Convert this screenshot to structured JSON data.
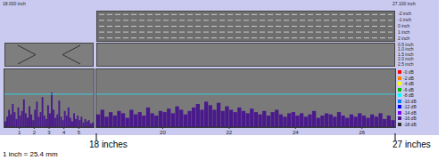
{
  "header": {
    "left": "18.000 inch",
    "right": "27.100 inch"
  },
  "scan_strip": {
    "labels": [
      "-2 inch",
      "-1 inch",
      "0 inch",
      "1 inch",
      "2 inch"
    ]
  },
  "gate_strip": {
    "labels": [
      "0.5 inch",
      "1.0 inch",
      "1.5 inch",
      "2.0 inch",
      "2.5 inch"
    ]
  },
  "color_scale": {
    "labels": [
      "-0 dB",
      "-2 dB",
      "-4 dB",
      "-6 dB",
      "-8 dB",
      "-10 dB",
      "-12 dB",
      "-14 dB",
      "-16 dB",
      "-18 dB"
    ],
    "colors": [
      "#ff0000",
      "#ff8000",
      "#ffff00",
      "#00c000",
      "#00ffff",
      "#0080ff",
      "#0000ff",
      "#8000ff",
      "#4a1a8c",
      "#303030"
    ]
  },
  "chart_data": [
    {
      "type": "bar",
      "x": [
        0.0625,
        0.1875,
        0.3125,
        0.4375,
        0.5625,
        0.6875,
        0.8125,
        0.9375,
        1.0625,
        1.1875,
        1.3125,
        1.4375,
        1.5625,
        1.6875,
        1.8125,
        1.9375,
        2.0625,
        2.1875,
        2.3125,
        2.4375,
        2.5625,
        2.6875,
        2.8125,
        2.9375,
        3.0625,
        3.1875,
        3.3125,
        3.4375,
        3.5625,
        3.6875,
        3.8125,
        3.9375,
        4.0625,
        4.1875,
        4.3125,
        4.4375,
        4.5625,
        4.6875,
        4.8125,
        4.9375,
        5.0625,
        5.1875,
        5.3125,
        5.4375,
        5.5625,
        5.6875,
        5.8125,
        5.9375
      ],
      "values": [
        10,
        18,
        30,
        22,
        40,
        26,
        14,
        34,
        20,
        28,
        48,
        24,
        16,
        36,
        22,
        12,
        30,
        44,
        18,
        26,
        52,
        20,
        14,
        38,
        24,
        60,
        30,
        16,
        22,
        46,
        18,
        12,
        28,
        20,
        34,
        16,
        10,
        24,
        14,
        20,
        12,
        18,
        8,
        14,
        10,
        12,
        6,
        8
      ],
      "color": "#4a1a8c",
      "xlim": [
        0,
        6
      ],
      "xticks": [
        1,
        2,
        3,
        4,
        5
      ],
      "ylim": [
        0,
        100
      ],
      "threshold": 57,
      "tick_labels": "x"
    },
    {
      "type": "bar",
      "x": [
        18.0625,
        18.1875,
        18.3125,
        18.4375,
        18.5625,
        18.6875,
        18.8125,
        18.9375,
        19.0625,
        19.1875,
        19.3125,
        19.4375,
        19.5625,
        19.6875,
        19.8125,
        19.9375,
        20.0625,
        20.1875,
        20.3125,
        20.4375,
        20.5625,
        20.6875,
        20.8125,
        20.9375,
        21.0625,
        21.1875,
        21.3125,
        21.4375,
        21.5625,
        21.6875,
        21.8125,
        21.9375,
        22.0625,
        22.1875,
        22.3125,
        22.4375,
        22.5625,
        22.6875,
        22.8125,
        22.9375,
        23.0625,
        23.1875,
        23.3125,
        23.4375,
        23.5625,
        23.6875,
        23.8125,
        23.9375,
        24.0625,
        24.1875,
        24.3125,
        24.4375,
        24.5625,
        24.6875,
        24.8125,
        24.9375,
        25.0625,
        25.1875,
        25.3125,
        25.4375,
        25.5625,
        25.6875,
        25.8125,
        25.9375,
        26.0625,
        26.1875,
        26.3125,
        26.4375,
        26.5625,
        26.6875,
        26.8125,
        26.9375
      ],
      "values": [
        22,
        30,
        18,
        26,
        20,
        28,
        24,
        16,
        30,
        22,
        26,
        20,
        34,
        24,
        20,
        28,
        26,
        32,
        24,
        36,
        30,
        22,
        28,
        34,
        40,
        30,
        44,
        38,
        30,
        42,
        28,
        36,
        30,
        26,
        34,
        28,
        24,
        32,
        26,
        22,
        28,
        20,
        26,
        30,
        22,
        18,
        24,
        26,
        20,
        24,
        18,
        22,
        28,
        16,
        20,
        24,
        22,
        18,
        26,
        20,
        16,
        22,
        18,
        24,
        20,
        16,
        22,
        18,
        24,
        14,
        20,
        12
      ],
      "color": "#4a1a8c",
      "xlim": [
        18,
        27
      ],
      "xticks": [
        20,
        22,
        24,
        26
      ],
      "ylim": [
        0,
        100
      ],
      "threshold": 57,
      "tick_labels": "x"
    }
  ],
  "annotations": {
    "start": "18 inches",
    "end": "27 inches",
    "conversion": "1 inch = 25.4 mm"
  }
}
